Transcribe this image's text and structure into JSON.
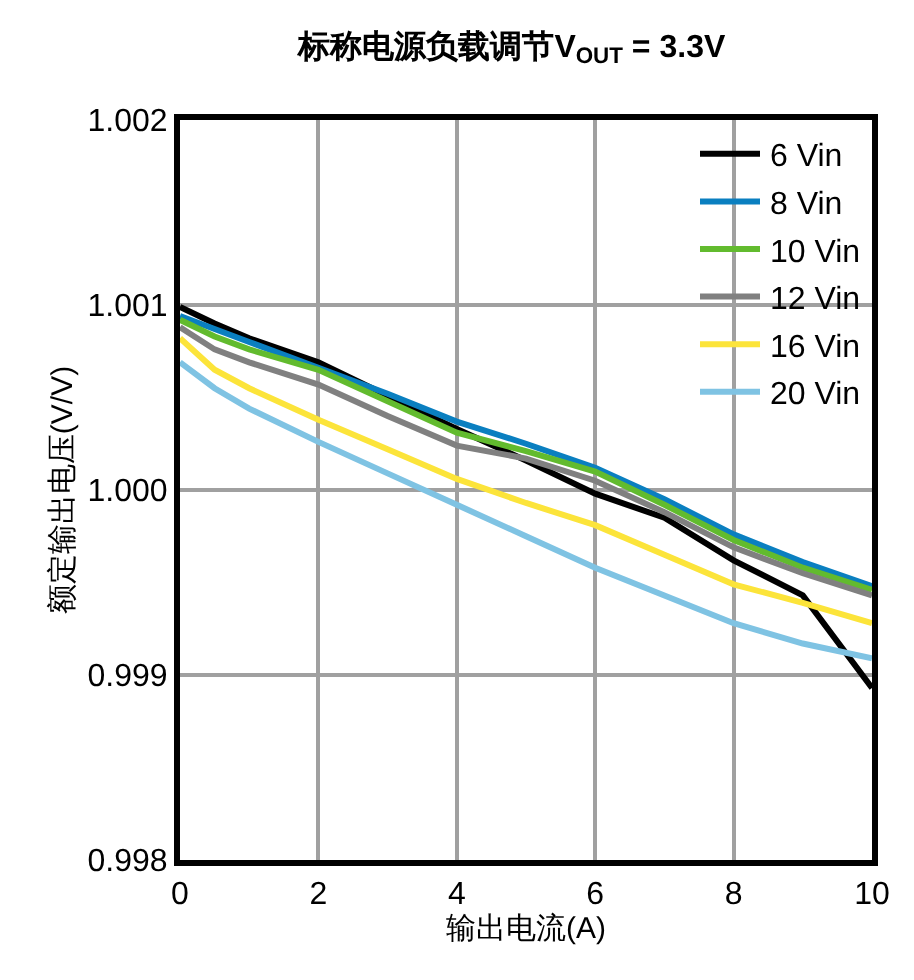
{
  "chart_data": {
    "type": "line",
    "title": "标称电源负载调节V$_{OUT}$ = 3.3V",
    "xlabel": "输出电流(A)",
    "ylabel": "额定输出电压(V/V)",
    "x": [
      0,
      0.5,
      1,
      2,
      3,
      4,
      5,
      6,
      7,
      8,
      9,
      10
    ],
    "series": [
      {
        "name": "6 Vin",
        "color": "#000000",
        "values": [
          1.00099,
          1.0009,
          1.00082,
          1.00069,
          1.00051,
          1.00033,
          1.00016,
          0.99998,
          0.99985,
          0.99962,
          0.99943,
          0.99893
        ]
      },
      {
        "name": "8 Vin",
        "color": "#0a7fc0",
        "values": [
          1.00094,
          1.00087,
          1.0008,
          1.00066,
          1.00052,
          1.00037,
          1.00025,
          1.00012,
          0.99995,
          0.99976,
          0.99961,
          0.99948
        ]
      },
      {
        "name": "10 Vin",
        "color": "#62bb2e",
        "values": [
          1.00092,
          1.00083,
          1.00076,
          1.00065,
          1.00048,
          1.00031,
          1.00021,
          1.0001,
          0.99992,
          0.99973,
          0.99958,
          0.99946
        ]
      },
      {
        "name": "12 Vin",
        "color": "#808080",
        "values": [
          1.00088,
          1.00076,
          1.00069,
          1.00057,
          1.0004,
          1.00024,
          1.00017,
          1.00005,
          0.99988,
          0.99969,
          0.99955,
          0.99943
        ]
      },
      {
        "name": "16 Vin",
        "color": "#fce43a",
        "values": [
          1.00082,
          1.00065,
          1.00055,
          1.00038,
          1.00022,
          1.00006,
          0.99993,
          0.99981,
          0.99965,
          0.99949,
          0.99939,
          0.99928
        ]
      },
      {
        "name": "20 Vin",
        "color": "#7fc3e3",
        "values": [
          1.00069,
          1.00055,
          1.00044,
          1.00026,
          1.00009,
          0.99992,
          0.99975,
          0.99958,
          0.99943,
          0.99928,
          0.99917,
          0.99909
        ]
      }
    ],
    "xlim": [
      0,
      10
    ],
    "xticks": [
      0,
      2,
      4,
      6,
      8,
      10
    ],
    "ylim": [
      0.998,
      1.002
    ],
    "yticks": [
      {
        "value": 0.998,
        "label": "0.998"
      },
      {
        "value": 0.999,
        "label": "0.999"
      },
      {
        "value": 1.0,
        "label": "1.000"
      },
      {
        "value": 1.001,
        "label": "1.001"
      },
      {
        "value": 1.002,
        "label": "1.002"
      }
    ],
    "grid": true,
    "legend": "top right",
    "marker": "none",
    "line_style": "solid"
  }
}
